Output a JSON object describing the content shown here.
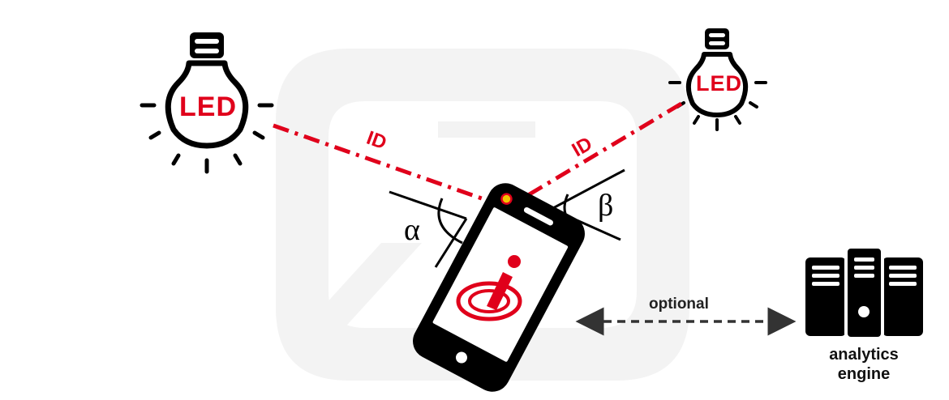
{
  "led_left": {
    "text": "LED"
  },
  "led_right": {
    "text": "LED"
  },
  "beam_left": {
    "text": "ID"
  },
  "beam_right": {
    "text": "ID"
  },
  "angle_left": {
    "symbol": "α"
  },
  "angle_right": {
    "symbol": "β"
  },
  "link": {
    "label": "optional"
  },
  "server": {
    "label_line1": "analytics",
    "label_line2": "engine"
  },
  "colors": {
    "accent": "#e0001b",
    "ink": "#000000",
    "watermark": "#f2f2f2",
    "camera": "#f5c400"
  }
}
